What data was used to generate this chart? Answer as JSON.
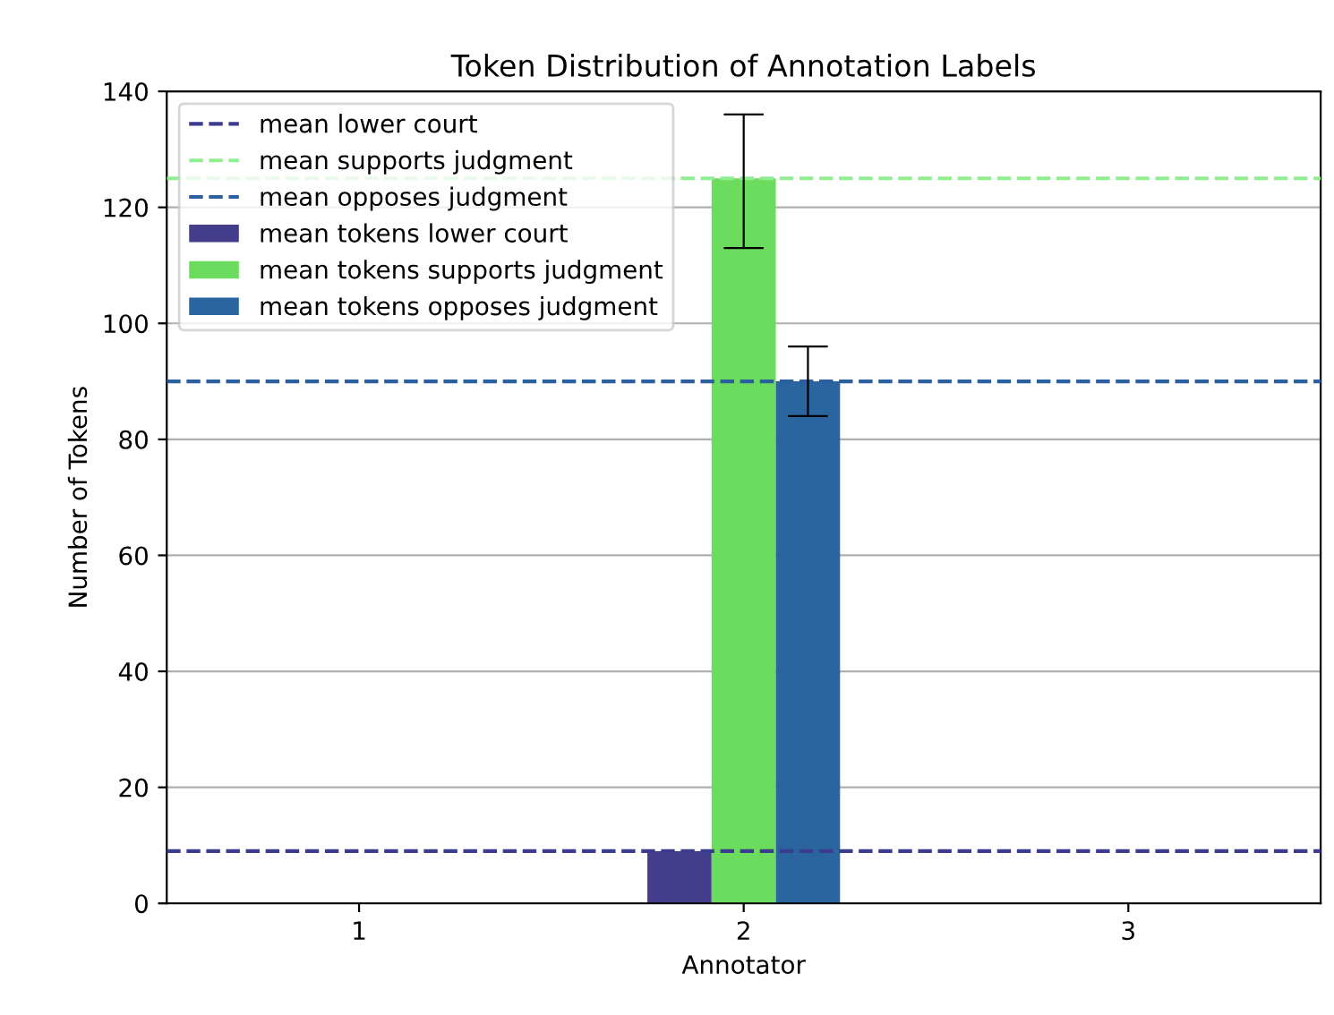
{
  "chart_data": {
    "type": "bar",
    "title": "Token Distribution of Annotation Labels",
    "xlabel": "Annotator",
    "ylabel": "Number of Tokens",
    "categories": [
      "1",
      "2",
      "3"
    ],
    "series": [
      {
        "name": "mean tokens lower court",
        "color": "#433d8b",
        "values": [
          null,
          9,
          null
        ]
      },
      {
        "name": "mean tokens supports judgment",
        "color": "#6cdc5e",
        "values": [
          null,
          125,
          null
        ],
        "errors": [
          null,
          [
            113,
            136
          ],
          null
        ]
      },
      {
        "name": "mean tokens opposes judgment",
        "color": "#2a65a0",
        "values": [
          null,
          90,
          null
        ],
        "errors": [
          null,
          [
            84,
            96
          ],
          null
        ]
      }
    ],
    "ref_lines": [
      {
        "axis": "y",
        "value": 9,
        "label": "mean lower court",
        "color": "#3b3b8f",
        "line_style": "dashed"
      },
      {
        "axis": "y",
        "value": 125,
        "label": "mean supports judgment",
        "color": "#90ee90",
        "line_style": "dashed"
      },
      {
        "axis": "y",
        "value": 90,
        "label": "mean opposes judgment",
        "color": "#2c5f9e",
        "line_style": "dashed"
      }
    ],
    "ylim": [
      0,
      140
    ],
    "yticks": [
      0,
      20,
      40,
      60,
      80,
      100,
      120,
      140
    ],
    "grid": "y",
    "legend": "top left"
  }
}
